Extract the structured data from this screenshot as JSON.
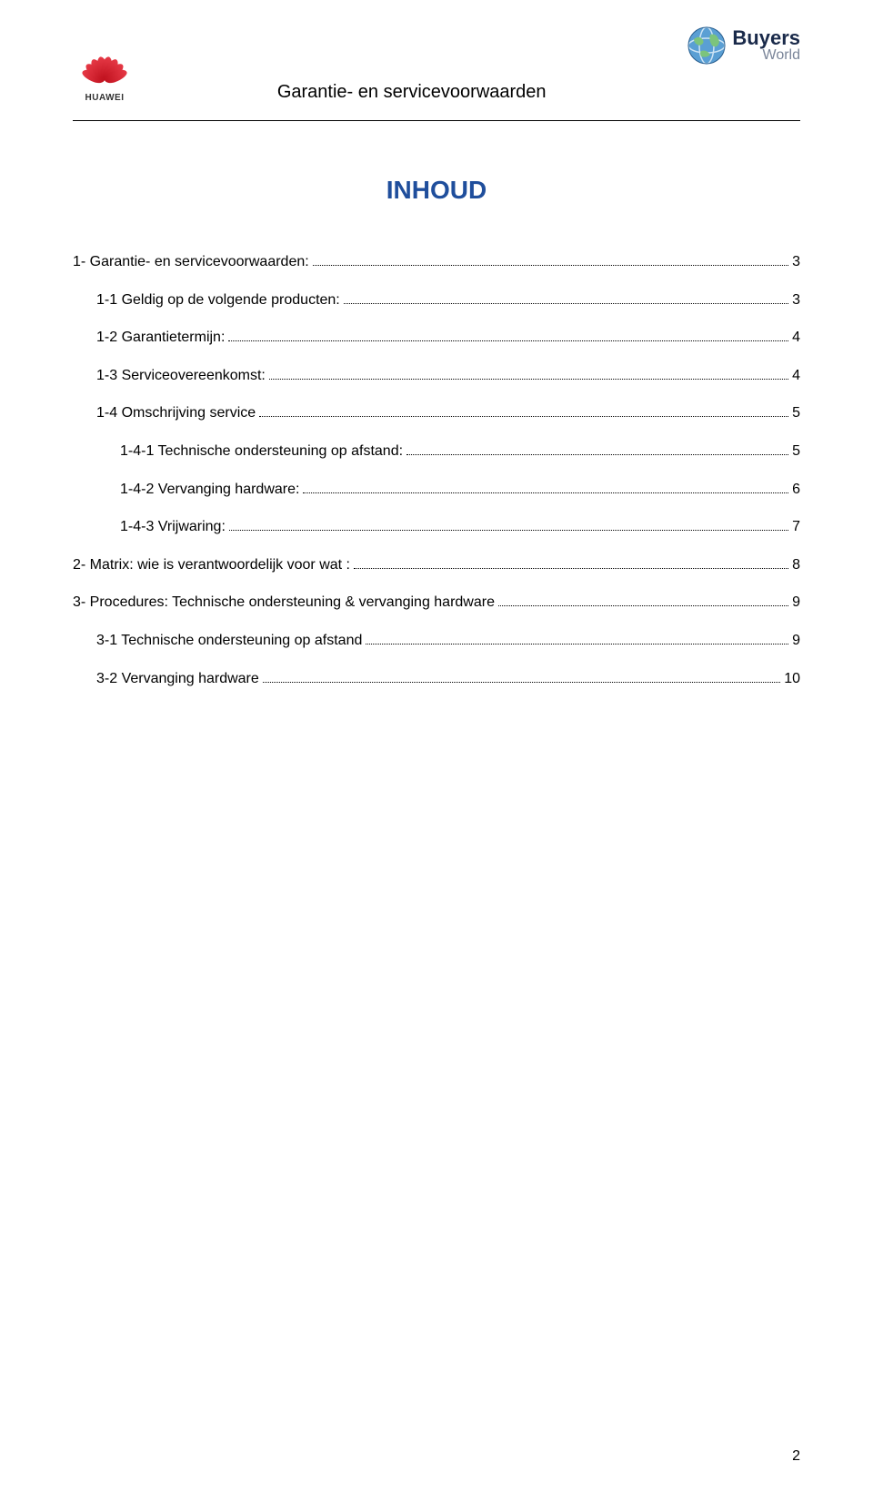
{
  "header": {
    "huawei_label": "HUAWEI",
    "doc_title": "Garantie- en servicevoorwaarden",
    "buyers_top": "Buyers",
    "buyers_bottom": "World"
  },
  "content_title": "INHOUD",
  "colors": {
    "title_color": "#1f4e9c",
    "text_color": "#000000",
    "huawei_red": "#c1121f",
    "buyers_dark": "#1a2a4a",
    "buyers_grey": "#7a8599",
    "globe_blue": "#3b7fc4",
    "globe_green": "#6bb36b"
  },
  "toc": [
    {
      "label": "1- Garantie- en servicevoorwaarden:",
      "page": "3",
      "indent": 0
    },
    {
      "label": "1-1 Geldig op de volgende producten:",
      "page": "3",
      "indent": 1
    },
    {
      "label": "1-2 Garantietermijn:",
      "page": "4",
      "indent": 1
    },
    {
      "label": "1-3 Serviceovereenkomst:",
      "page": "4",
      "indent": 1
    },
    {
      "label": "1-4 Omschrijving service",
      "page": "5",
      "indent": 1
    },
    {
      "label": "1-4-1 Technische ondersteuning op afstand:",
      "page": "5",
      "indent": 2
    },
    {
      "label": "1-4-2 Vervanging hardware:",
      "page": "6",
      "indent": 2
    },
    {
      "label": "1-4-3 Vrijwaring:",
      "page": "7",
      "indent": 2
    },
    {
      "label": "2- Matrix: wie is verantwoordelijk voor wat :",
      "page": "8",
      "indent": 0
    },
    {
      "label": "3- Procedures: Technische ondersteuning & vervanging hardware",
      "page": "9",
      "indent": 0
    },
    {
      "label": "3-1 Technische ondersteuning op afstand",
      "page": "9",
      "indent": 1
    },
    {
      "label": "3-2 Vervanging hardware",
      "page": "10",
      "indent": 1
    }
  ],
  "page_number": "2"
}
